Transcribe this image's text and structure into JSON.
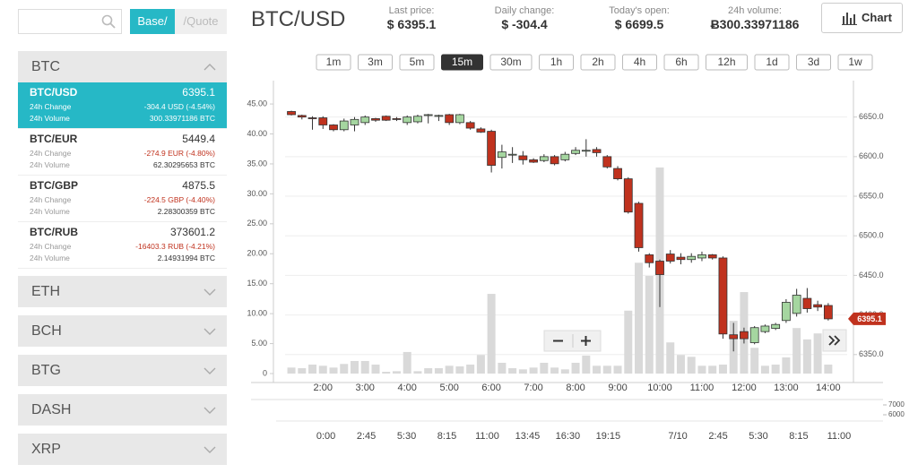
{
  "search": {
    "tabs": [
      "Base/",
      "/Quote"
    ]
  },
  "markets": [
    {
      "name": "BTC",
      "pairs": [
        {
          "pair": "BTC/USD",
          "price": "6395.1",
          "change_label": "24h Change",
          "change": "-304.4 USD (-4.54%)",
          "volume_label": "24h Volume",
          "volume": "300.33971186 BTC"
        },
        {
          "pair": "BTC/EUR",
          "price": "5449.4",
          "change_label": "24h Change",
          "change": "-274.9 EUR (-4.80%)",
          "volume_label": "24h Volume",
          "volume": "62.30295653 BTC"
        },
        {
          "pair": "BTC/GBP",
          "price": "4875.5",
          "change_label": "24h Change",
          "change": "-224.5 GBP (-4.40%)",
          "volume_label": "24h Volume",
          "volume": "2.28300359 BTC"
        },
        {
          "pair": "BTC/RUB",
          "price": "373601.2",
          "change_label": "24h Change",
          "change": "-16403.3 RUB (-4.21%)",
          "volume_label": "24h Volume",
          "volume": "2.14931994 BTC"
        }
      ]
    },
    {
      "name": "ETH"
    },
    {
      "name": "BCH"
    },
    {
      "name": "BTG"
    },
    {
      "name": "DASH"
    },
    {
      "name": "XRP"
    }
  ],
  "header": {
    "symbol": "BTC/USD",
    "stats": [
      {
        "label": "Last price:",
        "value": "$ 6395.1"
      },
      {
        "label": "Daily change:",
        "value": "$ -304.4"
      },
      {
        "label": "Today's open:",
        "value": "$ 6699.5"
      },
      {
        "label": "24h volume:",
        "value": "Ƀ300.33971186"
      }
    ],
    "button": "Chart"
  },
  "intervals": {
    "options": [
      "1m",
      "3m",
      "5m",
      "15m",
      "30m",
      "1h",
      "2h",
      "4h",
      "6h",
      "12h",
      "1d",
      "3d",
      "1w"
    ],
    "active": 3
  },
  "chart_data": {
    "type": "candlestick",
    "x": [
      1.25,
      1.5,
      1.75,
      2,
      2.25,
      2.5,
      2.75,
      3,
      3.25,
      3.5,
      3.75,
      4,
      4.25,
      4.5,
      4.75,
      5,
      5.25,
      5.5,
      5.75,
      6,
      6.25,
      6.5,
      6.75,
      7,
      7.25,
      7.5,
      7.75,
      8,
      8.25,
      8.5,
      8.75,
      9,
      9.25,
      9.5,
      9.75,
      10,
      10.25,
      10.5,
      10.75,
      11,
      11.25,
      11.5,
      11.75,
      12,
      12.25,
      12.5,
      12.75,
      13,
      13.25,
      13.5,
      13.75,
      14
    ],
    "open": [
      6657,
      6652,
      6649,
      6649,
      6640,
      6634,
      6640,
      6643,
      6648,
      6651,
      6648,
      6643,
      6644,
      6652,
      6652,
      6653,
      6643,
      6643,
      6635,
      6632,
      6599,
      6602,
      6601,
      6596,
      6595,
      6600,
      6596,
      6604,
      6607,
      6609,
      6600,
      6585,
      6572,
      6541,
      6476,
      6468,
      6477,
      6473,
      6470,
      6472,
      6476,
      6472,
      6375,
      6379,
      6365,
      6379,
      6383,
      6393,
      6402,
      6421,
      6413,
      6412
    ],
    "high": [
      6658,
      6653,
      6651,
      6651,
      6641,
      6648,
      6650,
      6652,
      6649,
      6652,
      6650,
      6652,
      6653,
      6654,
      6653,
      6654,
      6654,
      6645,
      6637,
      6634,
      6615,
      6612,
      6607,
      6598,
      6603,
      6602,
      6606,
      6612,
      6622,
      6612,
      6602,
      6588,
      6574,
      6543,
      6478,
      6470,
      6482,
      6478,
      6478,
      6480,
      6477,
      6474,
      6390,
      6384,
      6386,
      6388,
      6390,
      6420,
      6433,
      6434,
      6418,
      6415
    ],
    "low": [
      6652,
      6647,
      6634,
      6635,
      6632,
      6632,
      6632,
      6640,
      6644,
      6645,
      6645,
      6640,
      6642,
      6642,
      6645,
      6640,
      6641,
      6634,
      6630,
      6580,
      6585,
      6592,
      6590,
      6592,
      6593,
      6589,
      6594,
      6602,
      6600,
      6600,
      6585,
      6570,
      6528,
      6480,
      6460,
      6410,
      6465,
      6464,
      6466,
      6468,
      6470,
      6370,
      6354,
      6364,
      6363,
      6377,
      6381,
      6390,
      6398,
      6403,
      6405,
      6393
    ],
    "close": [
      6653,
      6650,
      6648,
      6640,
      6634,
      6645,
      6647,
      6650,
      6646,
      6646,
      6647,
      6650,
      6651,
      6653,
      6652,
      6643,
      6653,
      6636,
      6631,
      6589,
      6606,
      6603,
      6596,
      6593,
      6600,
      6591,
      6603,
      6608,
      6608,
      6605,
      6587,
      6572,
      6530,
      6485,
      6466,
      6451,
      6468,
      6470,
      6474,
      6476,
      6472,
      6376,
      6370,
      6370,
      6384,
      6386,
      6388,
      6416,
      6425,
      6408,
      6410,
      6395.1
    ],
    "volume": [
      1.0,
      0.9,
      1.5,
      1.3,
      1.0,
      1.6,
      2.1,
      2.1,
      1.5,
      0.3,
      0.4,
      3.6,
      0.4,
      0.9,
      0.9,
      1.3,
      1.2,
      1.5,
      3.1,
      13.3,
      1.8,
      0.9,
      0.7,
      1.0,
      1.8,
      1.0,
      0.7,
      1.8,
      3.0,
      1.3,
      1.3,
      1.3,
      10.5,
      18.5,
      16.3,
      34.4,
      5.2,
      3.1,
      2.8,
      1.3,
      1.3,
      1.5,
      8.8,
      13.6,
      4.3,
      1.3,
      1.5,
      2.7,
      7.6,
      5.7,
      6.7,
      1.5
    ],
    "up_color": "#a5d6a0",
    "down_color": "#c0321e",
    "volume_color": "#d9d9d9",
    "xlim": [
      1.1,
      14.45
    ],
    "xticks": [
      {
        "value": 2,
        "label": "2:00"
      },
      {
        "value": 3,
        "label": "3:00"
      },
      {
        "value": 4,
        "label": "4:00"
      },
      {
        "value": 5,
        "label": "5:00"
      },
      {
        "value": 6,
        "label": "6:00"
      },
      {
        "value": 7,
        "label": "7:00"
      },
      {
        "value": 8,
        "label": "8:00"
      },
      {
        "value": 9,
        "label": "9:00"
      },
      {
        "value": 10,
        "label": "10:00"
      },
      {
        "value": 11,
        "label": "11:00"
      },
      {
        "value": 12,
        "label": "12:00"
      },
      {
        "value": 13,
        "label": "13:00"
      },
      {
        "value": 14,
        "label": "14:00"
      }
    ],
    "ylim": [
      6326,
      6696
    ],
    "yticks": [
      {
        "value": 6350,
        "label": "6350.0"
      },
      {
        "value": 6400,
        "label": "6400.0"
      },
      {
        "value": 6450,
        "label": "6450.0"
      },
      {
        "value": 6500,
        "label": "6500.0"
      },
      {
        "value": 6550,
        "label": "6550.0"
      },
      {
        "value": 6600,
        "label": "6600.0"
      },
      {
        "value": 6650,
        "label": "6650.0"
      }
    ],
    "y2lim": [
      0,
      48.9
    ],
    "y2ticks": [
      0,
      {
        "value": 5,
        "label": "5.00"
      },
      {
        "value": 10,
        "label": "10.00"
      },
      {
        "value": 15,
        "label": "15.00"
      },
      {
        "value": 20,
        "label": "20.00"
      },
      {
        "value": 25,
        "label": "25.00"
      },
      {
        "value": 30,
        "label": "30.00"
      },
      {
        "value": 35,
        "label": "35.00"
      },
      {
        "value": 40,
        "label": "40.00"
      },
      {
        "value": 45,
        "label": "45.00"
      }
    ],
    "grid": true,
    "last_price": 6395.1
  },
  "navigator": {
    "xlim": [
      -3.4,
      38
    ],
    "xticks": [
      {
        "value": 0,
        "label": "0:00"
      },
      {
        "value": 2.75,
        "label": "2:45"
      },
      {
        "value": 5.5,
        "label": "5:30"
      },
      {
        "value": 8.25,
        "label": "8:15"
      },
      {
        "value": 11,
        "label": "11:00"
      },
      {
        "value": 13.75,
        "label": "13:45"
      },
      {
        "value": 16.5,
        "label": "16:30"
      },
      {
        "value": 19.25,
        "label": "19:15"
      },
      {
        "value": 24,
        "label": "7/10"
      },
      {
        "value": 26.75,
        "label": "2:45"
      },
      {
        "value": 29.5,
        "label": "5:30"
      },
      {
        "value": 32.25,
        "label": "8:15"
      },
      {
        "value": 35,
        "label": "11:00"
      }
    ],
    "ylim": [
      5364,
      7455
    ],
    "yticks": [
      6000,
      7000
    ]
  }
}
